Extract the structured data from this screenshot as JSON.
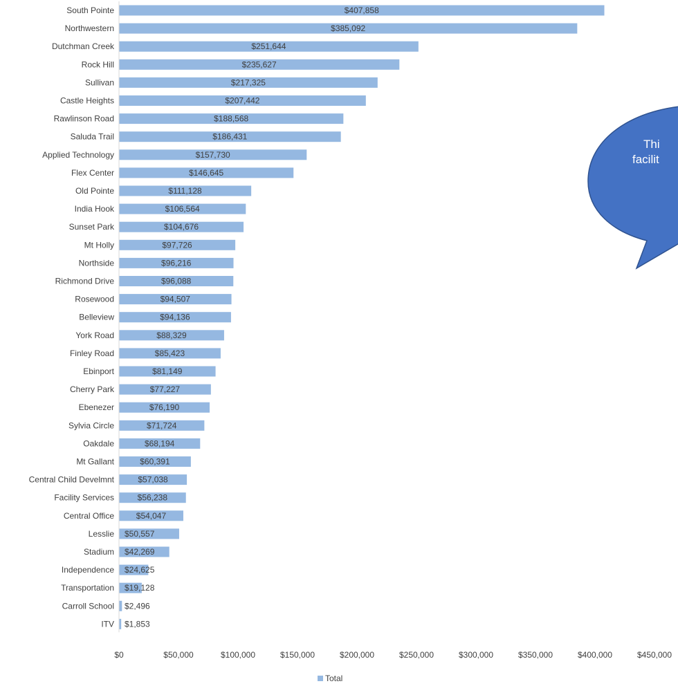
{
  "chart_data": {
    "type": "bar",
    "orientation": "horizontal",
    "categories": [
      "South Pointe",
      "Northwestern",
      "Dutchman Creek",
      "Rock Hill",
      "Sullivan",
      "Castle Heights",
      "Rawlinson Road",
      "Saluda Trail",
      "Applied Technology",
      "Flex Center",
      "Old Pointe",
      "India Hook",
      "Sunset Park",
      "Mt Holly",
      "Northside",
      "Richmond Drive",
      "Rosewood",
      "Belleview",
      "York Road",
      "Finley Road",
      "Ebinport",
      "Cherry Park",
      "Ebenezer",
      "Sylvia Circle",
      "Oakdale",
      "Mt Gallant",
      "Central Child Develmnt",
      "Facility Services",
      "Central Office",
      "Lesslie",
      "Stadium",
      "Independence",
      "Transportation",
      "Carroll School",
      "ITV"
    ],
    "values": [
      407858,
      385092,
      251644,
      235627,
      217325,
      207442,
      188568,
      186431,
      157730,
      146645,
      111128,
      106564,
      104676,
      97726,
      96216,
      96088,
      94507,
      94136,
      88329,
      85423,
      81149,
      77227,
      76190,
      71724,
      68194,
      60391,
      57038,
      56238,
      54047,
      50557,
      42269,
      24625,
      19128,
      2496,
      1853
    ],
    "value_labels": [
      "$407,858",
      "$385,092",
      "$251,644",
      "$235,627",
      "$217,325",
      "$207,442",
      "$188,568",
      "$186,431",
      "$157,730",
      "$146,645",
      "$111,128",
      "$106,564",
      "$104,676",
      "$97,726",
      "$96,216",
      "$96,088",
      "$94,507",
      "$94,136",
      "$88,329",
      "$85,423",
      "$81,149",
      "$77,227",
      "$76,190",
      "$71,724",
      "$68,194",
      "$60,391",
      "$57,038",
      "$56,238",
      "$54,047",
      "$50,557",
      "$42,269",
      "$24,625",
      "$19,128",
      "$2,496",
      "$1,853"
    ],
    "xlim": [
      0,
      450000
    ],
    "x_ticks": [
      0,
      50000,
      100000,
      150000,
      200000,
      250000,
      300000,
      350000,
      400000,
      450000
    ],
    "x_tick_labels": [
      "$0",
      "$50,000",
      "$100,000",
      "$150,000",
      "$200,000",
      "$250,000",
      "$300,000",
      "$350,000",
      "$400,000",
      "$450,000"
    ],
    "legend": {
      "label": "Total",
      "position": "bottom"
    },
    "bar_color": "#95b8e1",
    "grid": false
  },
  "callout": {
    "lines": [
      "Thi",
      "facilit"
    ],
    "fill": "#4472c4",
    "stroke": "#2f528f"
  }
}
